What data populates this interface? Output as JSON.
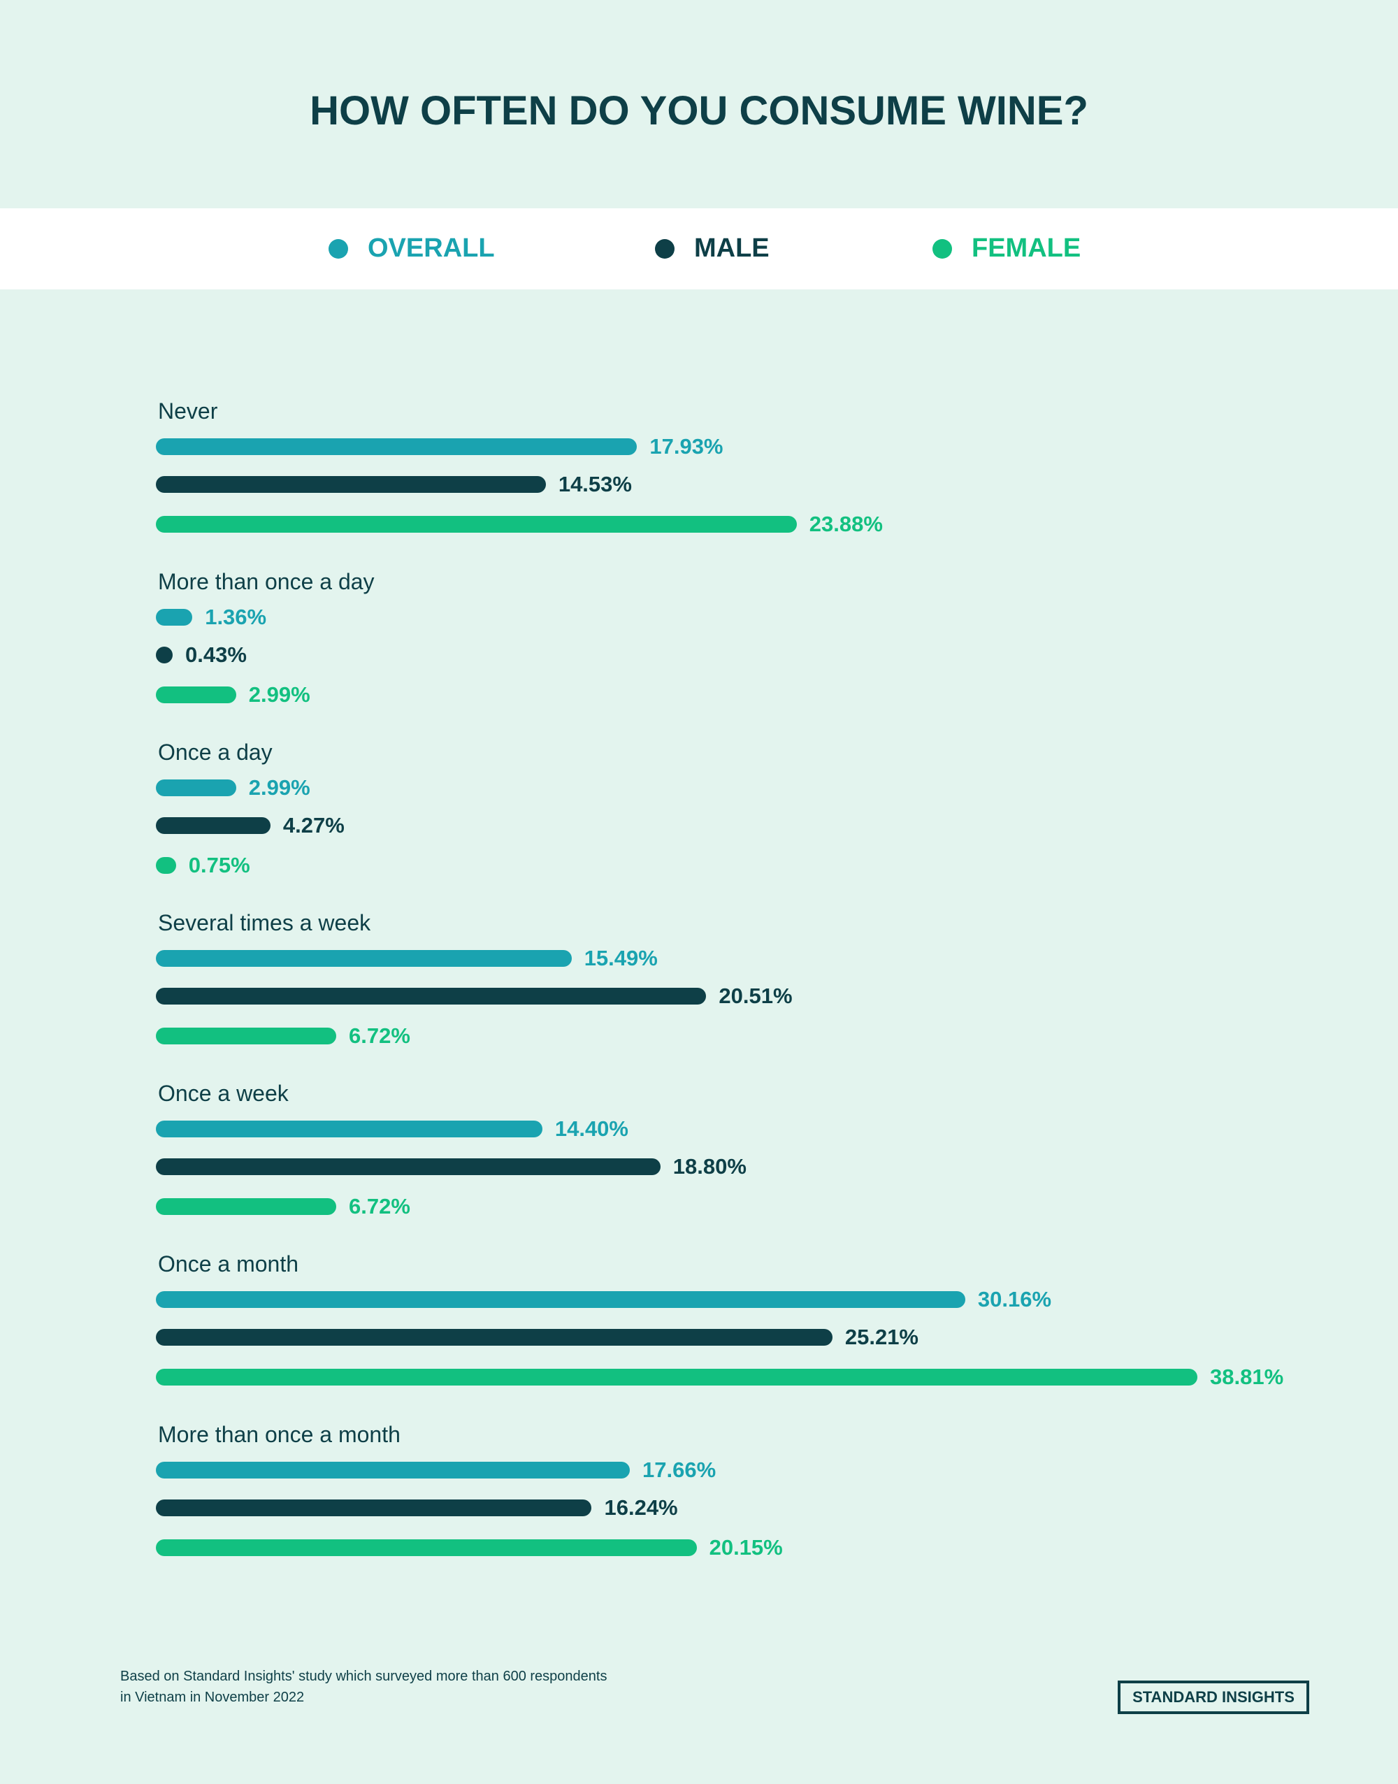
{
  "chart_data": {
    "type": "bar",
    "orientation": "horizontal",
    "title": "HOW OFTEN DO YOU CONSUME WINE?",
    "legend_position": "top",
    "grid": false,
    "categories": [
      "Never",
      "More than once a day",
      "Once a day",
      "Several times a week",
      "Once a week",
      "Once a month",
      "More than once a month"
    ],
    "series": [
      {
        "name": "OVERALL",
        "color": "#1aa3b0",
        "values": [
          17.93,
          1.36,
          2.99,
          15.49,
          14.4,
          30.16,
          17.66
        ],
        "labels": [
          "17.93%",
          "1.36%",
          "2.99%",
          "15.49%",
          "14.40%",
          "30.16%",
          "17.66%"
        ]
      },
      {
        "name": "MALE",
        "color": "#0e3f47",
        "values": [
          14.53,
          0.43,
          4.27,
          20.51,
          18.8,
          25.21,
          16.24
        ],
        "labels": [
          "14.53%",
          "0.43%",
          "4.27%",
          "20.51%",
          "18.80%",
          "25.21%",
          "16.24%"
        ]
      },
      {
        "name": "FEMALE",
        "color": "#12c080",
        "values": [
          23.88,
          2.99,
          0.75,
          6.72,
          6.72,
          38.81,
          20.15
        ],
        "labels": [
          "23.88%",
          "2.99%",
          "0.75%",
          "6.72%",
          "6.72%",
          "38.81%",
          "20.15%"
        ]
      }
    ]
  },
  "footer": {
    "note_line1": "Based on Standard Insights' study which surveyed more than 600 respondents",
    "note_line2": "in Vietnam in November 2022",
    "logo": "STANDARD INSIGHTS"
  }
}
